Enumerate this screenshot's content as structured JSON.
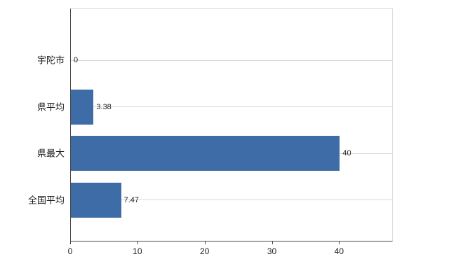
{
  "chart_data": {
    "type": "bar",
    "orientation": "horizontal",
    "title": "",
    "xlabel": "",
    "ylabel": "",
    "categories": [
      "宇陀市",
      "県平均",
      "県最大",
      "全国平均"
    ],
    "values": [
      0,
      3.38,
      40,
      7.47
    ],
    "value_labels": [
      "0",
      "3.38",
      "40",
      "7.47"
    ],
    "xlim": [
      0,
      48
    ],
    "xticks": [
      0,
      10,
      20,
      30,
      40
    ],
    "legend": "none",
    "grid": "horizontal-lines-at-category-centers",
    "bar_color": "#3d6ca6",
    "grid_color": "#d9d9d9",
    "axis_color": "#4a4a4a"
  }
}
